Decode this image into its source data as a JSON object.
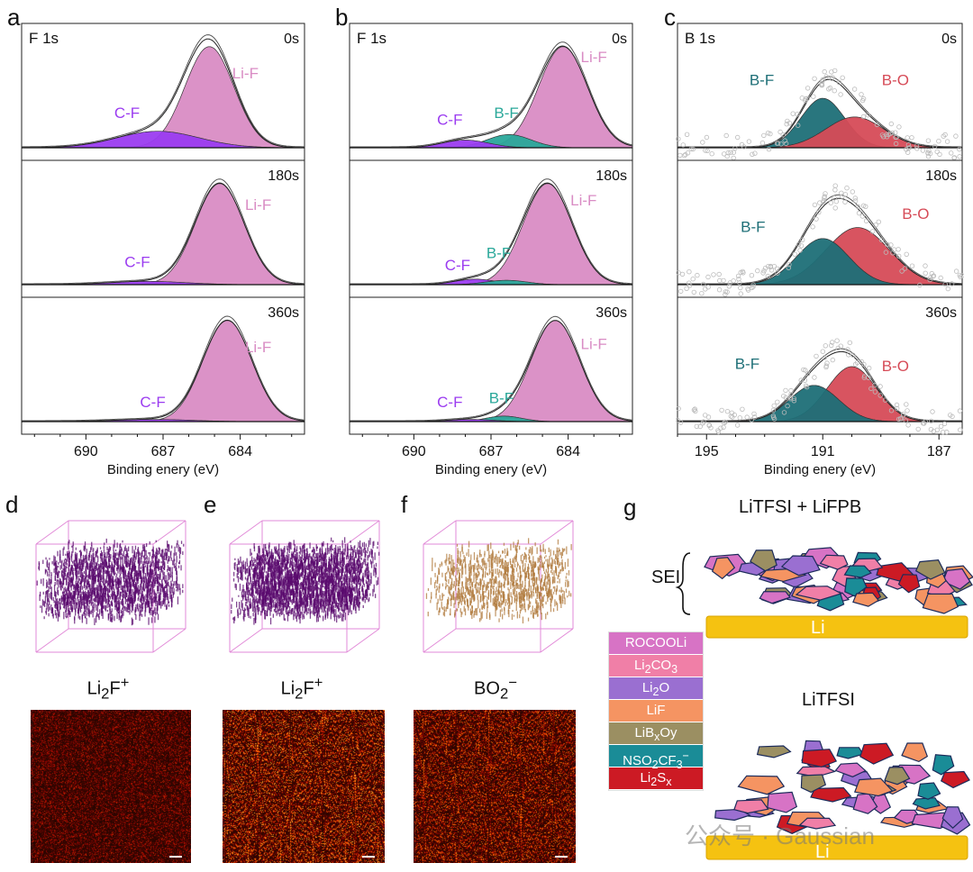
{
  "panel_labels": [
    "a",
    "b",
    "c",
    "d",
    "e",
    "f",
    "g"
  ],
  "colors": {
    "li_f": "#d98cc4",
    "c_f": "#9b3cf0",
    "b_f": "#2aa89a",
    "b_f_dark": "#1e6f77",
    "b_o": "#d64b57",
    "envelope": "#666666",
    "tof_purple": "#5a0a6e",
    "tof_bronze": "#b07a3c",
    "li_metal": "#f5c211",
    "rocooli": "#d773c5",
    "li2co3": "#f07fa7",
    "li2o": "#9a6fd1",
    "lif": "#f59462",
    "libxoy": "#9b8f62",
    "nso2cf3": "#1a8c97",
    "li2sx": "#cc1a24"
  },
  "chart_data": [
    {
      "id": "a",
      "type": "line",
      "title": "F 1s",
      "xlabel": "Binding enery (eV)",
      "xlim": [
        692.5,
        681.5
      ],
      "xticks": [
        690,
        687,
        684
      ],
      "panels": [
        {
          "time": "0s",
          "peaks": [
            {
              "name": "Li-F",
              "center": 685.2,
              "height": 0.92,
              "sigma": 0.95,
              "color": "li_f"
            },
            {
              "name": "C-F",
              "center": 687.2,
              "height": 0.15,
              "sigma": 1.6,
              "color": "c_f"
            }
          ],
          "labels": [
            {
              "text": "Li-F",
              "x": 683.8,
              "y": 0.63
            },
            {
              "text": "C-F",
              "x": 688.4,
              "y": 0.27
            }
          ]
        },
        {
          "time": "180s",
          "peaks": [
            {
              "name": "Li-F",
              "center": 684.8,
              "height": 0.92,
              "sigma": 0.95,
              "color": "li_f"
            },
            {
              "name": "C-F",
              "center": 687.6,
              "height": 0.03,
              "sigma": 1.5,
              "color": "c_f"
            }
          ],
          "labels": [
            {
              "text": "Li-F",
              "x": 683.3,
              "y": 0.68
            },
            {
              "text": "C-F",
              "x": 688.0,
              "y": 0.16
            }
          ]
        },
        {
          "time": "360s",
          "peaks": [
            {
              "name": "Li-F",
              "center": 684.5,
              "height": 0.92,
              "sigma": 0.95,
              "color": "li_f"
            },
            {
              "name": "C-F",
              "center": 687.4,
              "height": 0.02,
              "sigma": 1.5,
              "color": "c_f"
            }
          ],
          "labels": [
            {
              "text": "Li-F",
              "x": 683.3,
              "y": 0.63
            },
            {
              "text": "C-F",
              "x": 687.4,
              "y": 0.13
            }
          ]
        }
      ]
    },
    {
      "id": "b",
      "type": "line",
      "title": "F 1s",
      "xlabel": "Binding enery (eV)",
      "xlim": [
        692.5,
        681.5
      ],
      "xticks": [
        690,
        687,
        684
      ],
      "panels": [
        {
          "time": "0s",
          "peaks": [
            {
              "name": "Li-F",
              "center": 684.2,
              "height": 0.92,
              "sigma": 0.95,
              "color": "li_f"
            },
            {
              "name": "B-F",
              "center": 686.3,
              "height": 0.12,
              "sigma": 0.85,
              "color": "b_f"
            },
            {
              "name": "C-F",
              "center": 688.0,
              "height": 0.07,
              "sigma": 0.9,
              "color": "c_f"
            }
          ],
          "labels": [
            {
              "text": "Li-F",
              "x": 683.0,
              "y": 0.78
            },
            {
              "text": "B-F",
              "x": 686.4,
              "y": 0.27
            },
            {
              "text": "C-F",
              "x": 688.6,
              "y": 0.21
            }
          ]
        },
        {
          "time": "180s",
          "peaks": [
            {
              "name": "Li-F",
              "center": 684.8,
              "height": 0.92,
              "sigma": 0.95,
              "color": "li_f"
            },
            {
              "name": "B-F",
              "center": 686.4,
              "height": 0.04,
              "sigma": 0.8,
              "color": "b_f"
            },
            {
              "name": "C-F",
              "center": 687.6,
              "height": 0.05,
              "sigma": 0.8,
              "color": "c_f"
            }
          ],
          "labels": [
            {
              "text": "Li-F",
              "x": 683.4,
              "y": 0.72
            },
            {
              "text": "B-F",
              "x": 686.7,
              "y": 0.24
            },
            {
              "text": "C-F",
              "x": 688.3,
              "y": 0.13
            }
          ]
        },
        {
          "time": "360s",
          "peaks": [
            {
              "name": "Li-F",
              "center": 684.5,
              "height": 0.92,
              "sigma": 0.95,
              "color": "li_f"
            },
            {
              "name": "B-F",
              "center": 686.5,
              "height": 0.05,
              "sigma": 0.7,
              "color": "b_f"
            },
            {
              "name": "C-F",
              "center": 687.8,
              "height": 0.02,
              "sigma": 0.9,
              "color": "c_f"
            }
          ],
          "labels": [
            {
              "text": "Li-F",
              "x": 683.0,
              "y": 0.66
            },
            {
              "text": "B-F",
              "x": 686.6,
              "y": 0.17
            },
            {
              "text": "C-F",
              "x": 688.6,
              "y": 0.13
            }
          ]
        }
      ]
    },
    {
      "id": "c",
      "type": "line",
      "title": "B 1s",
      "xlabel": "Binding enery (eV)",
      "xlim": [
        196,
        186.2
      ],
      "xticks": [
        195,
        191,
        187
      ],
      "panels": [
        {
          "time": "0s",
          "peaks": [
            {
              "name": "B-F",
              "center": 191.0,
              "height": 0.45,
              "sigma": 0.75,
              "color": "b_f_dark"
            },
            {
              "name": "B-O",
              "center": 189.9,
              "height": 0.28,
              "sigma": 1.0,
              "color": "b_o"
            }
          ],
          "labels": [
            {
              "text": "B-F",
              "x": 193.1,
              "y": 0.57
            },
            {
              "text": "B-O",
              "x": 188.5,
              "y": 0.57
            }
          ]
        },
        {
          "time": "180s",
          "peaks": [
            {
              "name": "B-F",
              "center": 191.0,
              "height": 0.42,
              "sigma": 0.9,
              "color": "b_f_dark"
            },
            {
              "name": "B-O",
              "center": 189.8,
              "height": 0.52,
              "sigma": 1.1,
              "color": "b_o"
            }
          ],
          "labels": [
            {
              "text": "B-F",
              "x": 193.4,
              "y": 0.48
            },
            {
              "text": "B-O",
              "x": 187.8,
              "y": 0.6
            }
          ]
        },
        {
          "time": "360s",
          "peaks": [
            {
              "name": "B-F",
              "center": 191.3,
              "height": 0.33,
              "sigma": 0.85,
              "color": "b_f_dark"
            },
            {
              "name": "B-O",
              "center": 190.0,
              "height": 0.5,
              "sigma": 0.85,
              "color": "b_o"
            }
          ],
          "labels": [
            {
              "text": "B-F",
              "x": 193.6,
              "y": 0.48
            },
            {
              "text": "B-O",
              "x": 188.5,
              "y": 0.46
            }
          ]
        }
      ]
    }
  ],
  "tof": {
    "d": {
      "ion_main": "Li",
      "ion_sub": "2",
      "ion_rest": "F",
      "ion_sup": "+"
    },
    "e": {
      "ion_main": "Li",
      "ion_sub": "2",
      "ion_rest": "F",
      "ion_sup": "+"
    },
    "f": {
      "ion_main": "BO",
      "ion_sub": "2",
      "ion_rest": "",
      "ion_sup": "−"
    }
  },
  "schematic": {
    "title_top": "LiTFSI + LiFPB",
    "title_bottom": "LiTFSI",
    "sei_label": "SEI",
    "li_label": "Li",
    "legend": [
      {
        "main": "ROCOOLi",
        "color": "rocooli"
      },
      {
        "main": "Li",
        "sub": "2",
        "rest": "CO",
        "sub2": "3",
        "color": "li2co3"
      },
      {
        "main": "Li",
        "sub": "2",
        "rest": "O",
        "color": "li2o"
      },
      {
        "main": "LiF",
        "color": "lif"
      },
      {
        "main": "LiB",
        "sub": "x",
        "rest": "Oy",
        "color": "libxoy"
      },
      {
        "main": "NSO",
        "sub": "2",
        "rest": "CF",
        "sub2": "3",
        "sup": "−",
        "color": "nso2cf3"
      },
      {
        "main": "Li",
        "sub": "2",
        "rest": "S",
        "sub2": "x",
        "color": "li2sx"
      }
    ]
  },
  "watermark": "公众号 · Gaussian"
}
